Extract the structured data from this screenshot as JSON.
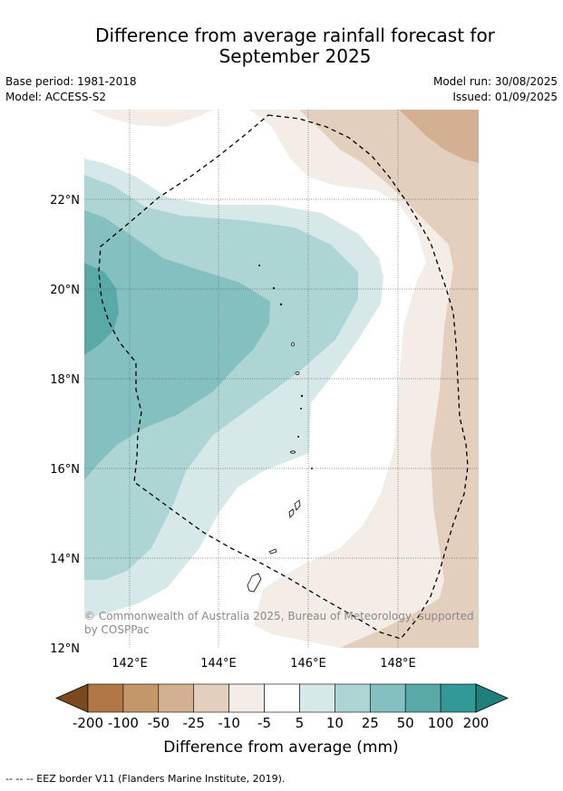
{
  "title_line1": "Difference from average rainfall forecast for",
  "title_line2": "September 2025",
  "meta": {
    "base_period": "Base period: 1981-2018",
    "model": "Model: ACCESS-S2",
    "model_run": "Model run: 30/08/2025",
    "issued": "Issued: 01/09/2025"
  },
  "map": {
    "lat_ticks": [
      "22°N",
      "20°N",
      "18°N",
      "16°N",
      "14°N",
      "12°N"
    ],
    "lon_ticks": [
      "142°E",
      "144°E",
      "146°E",
      "148°E"
    ],
    "copyright_line1": "© Commonwealth of Australia 2025, Bureau of Meteorology, supported",
    "copyright_line2": "by COSPPac"
  },
  "colorbar": {
    "labels": [
      "-200",
      "-100",
      "-50",
      "-25",
      "-10",
      "-5",
      "5",
      "10",
      "25",
      "50",
      "100",
      "200"
    ],
    "colors": [
      "#7a4a1e",
      "#b07844",
      "#c4976b",
      "#d3b091",
      "#e3cfbd",
      "#f4ece6",
      "#ffffff",
      "#d6e9e8",
      "#acd5d4",
      "#84c0bf",
      "#5aa9a9",
      "#329996",
      "#1f7f7b"
    ],
    "title": "Difference from average (mm)"
  },
  "footer": "--  --  -- EEZ border V11 (Flanders Marine Institute, 2019)."
}
